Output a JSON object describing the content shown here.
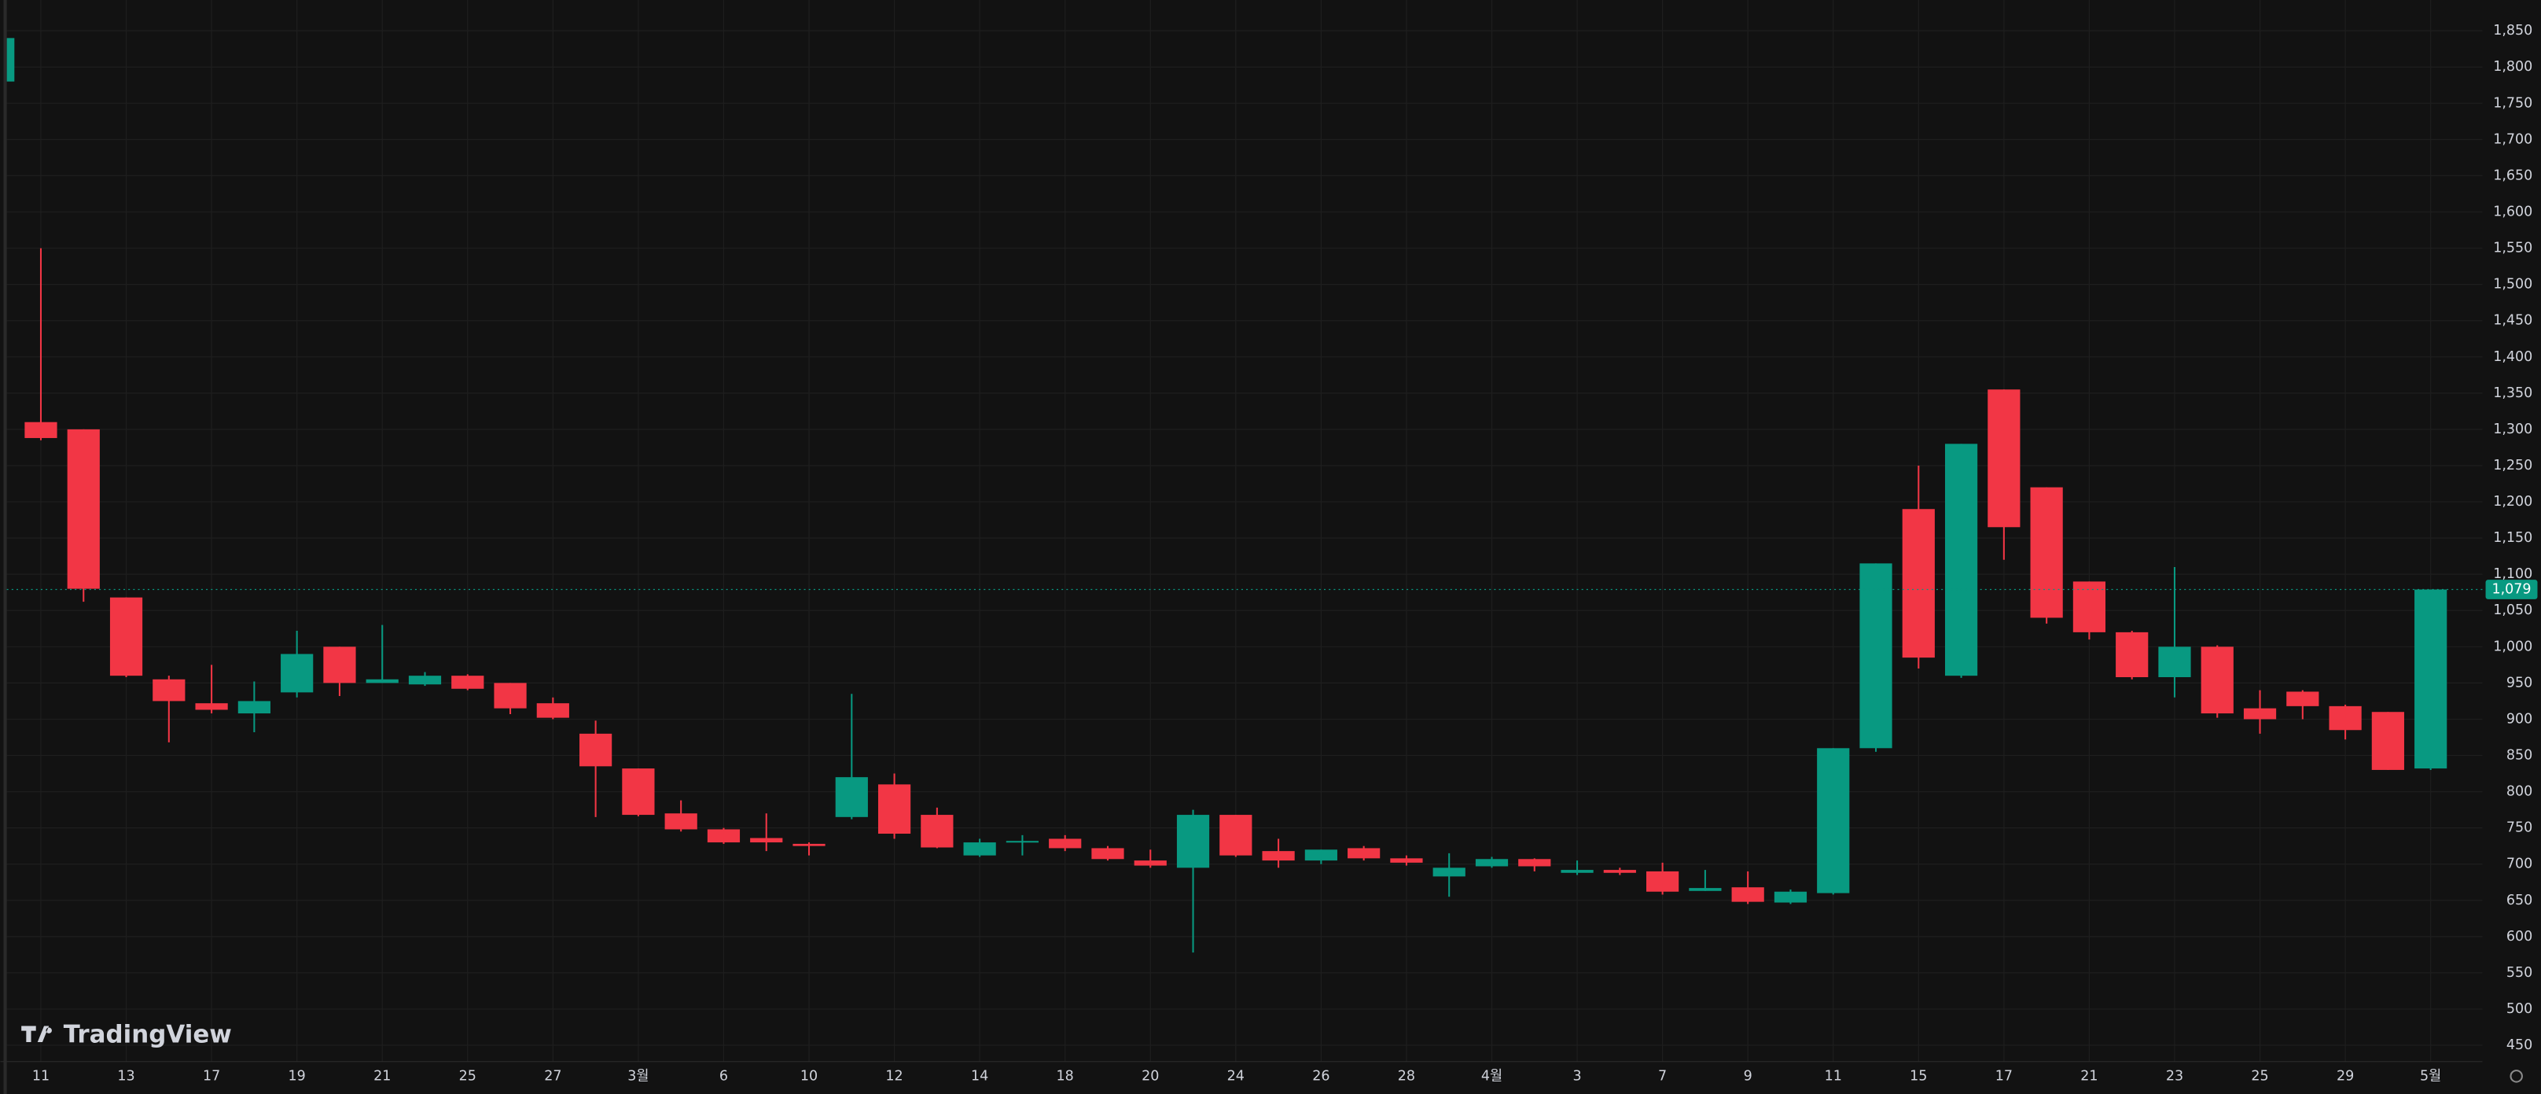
{
  "chart_data": {
    "type": "candlestick",
    "watermark": "TradingView",
    "categories": [
      null,
      "11",
      null,
      "13",
      null,
      "17",
      null,
      "19",
      null,
      "21",
      null,
      "25",
      null,
      "27",
      null,
      "3월",
      null,
      "6",
      null,
      "10",
      null,
      "12",
      null,
      "14",
      null,
      "18",
      null,
      "20",
      null,
      "24",
      null,
      "26",
      null,
      "28",
      null,
      "4월",
      null,
      "3",
      null,
      "7",
      null,
      "9",
      null,
      "11",
      null,
      "15",
      null,
      "17",
      null,
      "21",
      null,
      "23",
      null,
      "25",
      null,
      "29",
      null,
      "5월"
    ],
    "open": [
      1780,
      1310,
      1300,
      1068,
      955,
      922,
      908,
      937,
      1000,
      950,
      948,
      960,
      950,
      922,
      880,
      832,
      770,
      748,
      736,
      728,
      765,
      810,
      768,
      712,
      730,
      735,
      722,
      705,
      695,
      768,
      718,
      705,
      722,
      708,
      683,
      697,
      707,
      688,
      692,
      690,
      663,
      668,
      647,
      660,
      860,
      1190,
      960,
      1355,
      1220,
      1090,
      1020,
      958,
      1000,
      915,
      938,
      918,
      910,
      832
    ],
    "high": [
      1845,
      1550,
      1300,
      1068,
      960,
      975,
      952,
      1022,
      1000,
      1030,
      965,
      962,
      950,
      930,
      898,
      832,
      788,
      750,
      770,
      730,
      935,
      825,
      778,
      735,
      740,
      740,
      725,
      720,
      775,
      768,
      735,
      720,
      725,
      712,
      715,
      710,
      708,
      705,
      695,
      702,
      692,
      690,
      665,
      860,
      1115,
      1250,
      1280,
      1355,
      1220,
      1090,
      1022,
      1110,
      1002,
      940,
      940,
      920,
      910,
      1079
    ],
    "low": [
      1775,
      1285,
      1062,
      958,
      868,
      908,
      882,
      930,
      932,
      950,
      946,
      940,
      907,
      900,
      765,
      766,
      745,
      728,
      718,
      712,
      762,
      735,
      722,
      710,
      712,
      718,
      705,
      695,
      578,
      710,
      695,
      700,
      705,
      698,
      655,
      695,
      690,
      685,
      685,
      658,
      663,
      645,
      645,
      658,
      855,
      970,
      957,
      1120,
      1032,
      1010,
      955,
      930,
      902,
      880,
      900,
      872,
      830,
      830
    ],
    "close": [
      1840,
      1288,
      1080,
      960,
      925,
      913,
      925,
      990,
      950,
      955,
      960,
      942,
      915,
      902,
      835,
      768,
      748,
      730,
      730,
      725,
      820,
      742,
      723,
      730,
      732,
      722,
      707,
      698,
      768,
      712,
      705,
      720,
      708,
      702,
      695,
      707,
      697,
      692,
      688,
      662,
      667,
      648,
      662,
      860,
      1115,
      985,
      1280,
      1165,
      1040,
      1020,
      958,
      1000,
      908,
      900,
      918,
      885,
      830,
      1079
    ],
    "up_color": "#089981",
    "down_color": "#f23645",
    "last_price": {
      "value": 1079,
      "label": "1,079"
    },
    "ylim": [
      427.5,
      1892.5
    ],
    "yticks": [
      450,
      500,
      550,
      600,
      650,
      700,
      750,
      800,
      850,
      900,
      950,
      {
        "value": 1000,
        "label": "1,000"
      },
      {
        "value": 1050,
        "label": "1,050"
      },
      {
        "value": 1100,
        "label": "1,100"
      },
      {
        "value": 1150,
        "label": "1,150"
      },
      {
        "value": 1200,
        "label": "1,200"
      },
      {
        "value": 1250,
        "label": "1,250"
      },
      {
        "value": 1300,
        "label": "1,300"
      },
      {
        "value": 1350,
        "label": "1,350"
      },
      {
        "value": 1400,
        "label": "1,400"
      },
      {
        "value": 1450,
        "label": "1,450"
      },
      {
        "value": 1500,
        "label": "1,500"
      },
      {
        "value": 1550,
        "label": "1,550"
      },
      {
        "value": 1600,
        "label": "1,600"
      },
      {
        "value": 1650,
        "label": "1,650"
      },
      {
        "value": 1700,
        "label": "1,700"
      },
      {
        "value": 1750,
        "label": "1,750"
      },
      {
        "value": 1800,
        "label": "1,800"
      },
      {
        "value": 1850,
        "label": "1,850"
      }
    ],
    "grid": true
  }
}
